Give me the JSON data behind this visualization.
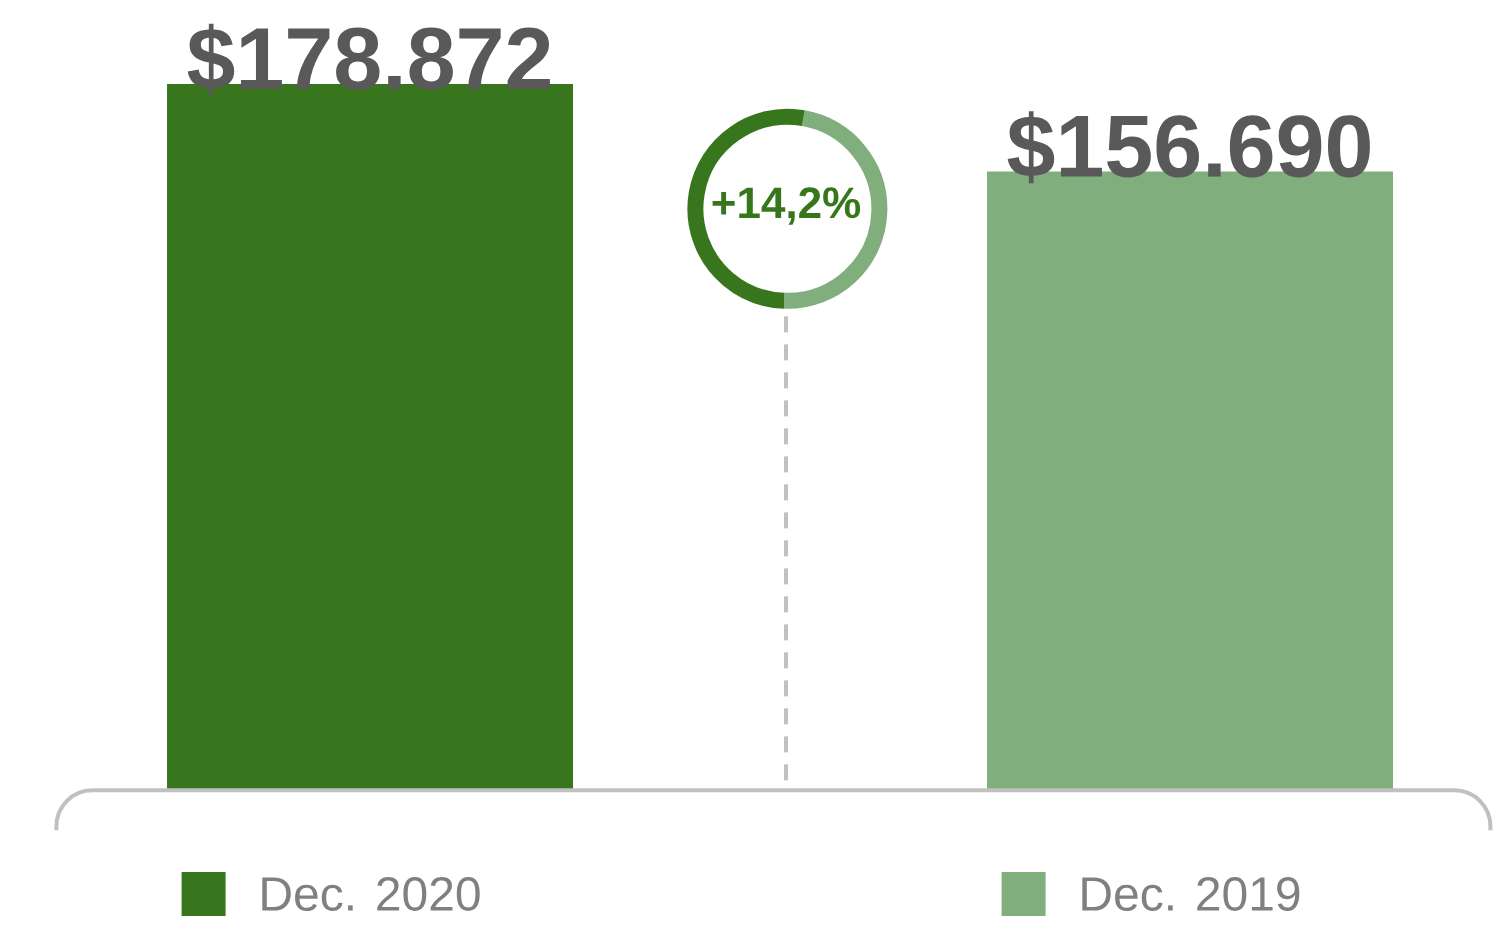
{
  "chart_data": {
    "type": "bar",
    "categories": [
      "Dec. 2020",
      "Dec. 2019"
    ],
    "values": [
      178872,
      156690
    ],
    "colors": [
      "#38761d",
      "#80ae7c"
    ],
    "value_labels": [
      "$178.872",
      "$156.690"
    ],
    "annotations": [
      "+14,2%"
    ]
  }
}
